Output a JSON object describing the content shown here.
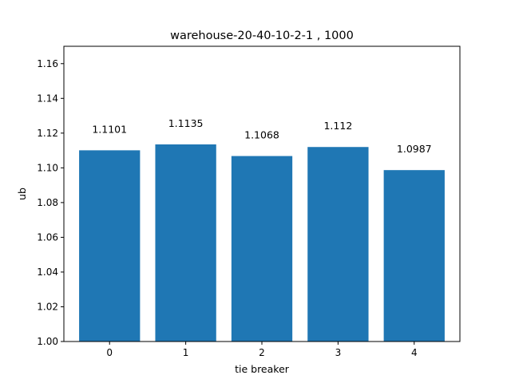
{
  "chart_data": {
    "type": "bar",
    "title": "warehouse-20-40-10-2-1 , 1000",
    "xlabel": "tie breaker",
    "ylabel": "ub",
    "categories": [
      "0",
      "1",
      "2",
      "3",
      "4"
    ],
    "values": [
      1.1101,
      1.1135,
      1.1068,
      1.112,
      1.0987
    ],
    "data_labels": [
      "1.1101",
      "1.1135",
      "1.1068",
      "1.112",
      "1.0987"
    ],
    "ylim": [
      1.0,
      1.17
    ],
    "yticks": [
      1.0,
      1.02,
      1.04,
      1.06,
      1.08,
      1.1,
      1.12,
      1.14,
      1.16
    ],
    "ytick_labels": [
      "1.00",
      "1.02",
      "1.04",
      "1.06",
      "1.08",
      "1.10",
      "1.12",
      "1.14",
      "1.16"
    ],
    "bar_color": "#1f77b4",
    "grid": false,
    "legend": "none"
  }
}
